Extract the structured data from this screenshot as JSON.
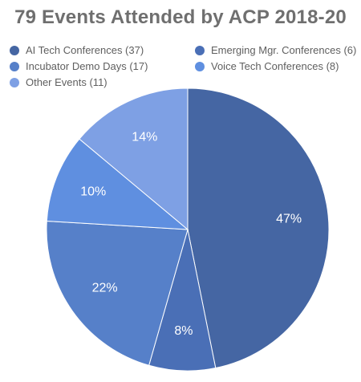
{
  "chart_data": {
    "type": "pie",
    "title": "79 Events Attended by ACP 2018-20",
    "legend_placement": "top",
    "slices": [
      {
        "name": "AI Tech Conferences (37)",
        "value": 37,
        "label": "47%",
        "color": "#4566a3"
      },
      {
        "name": "Emerging Mgr. Conferences (6)",
        "value": 6,
        "label": "8%",
        "color": "#4a6fb6"
      },
      {
        "name": "Incubator Demo Days (17)",
        "value": 17,
        "label": "22%",
        "color": "#5680c9"
      },
      {
        "name": "Voice Tech Conferences (8)",
        "value": 8,
        "label": "10%",
        "color": "#5f8fe0"
      },
      {
        "name": "Other Events (11)",
        "value": 11,
        "label": "14%",
        "color": "#7ea0e4"
      }
    ]
  }
}
